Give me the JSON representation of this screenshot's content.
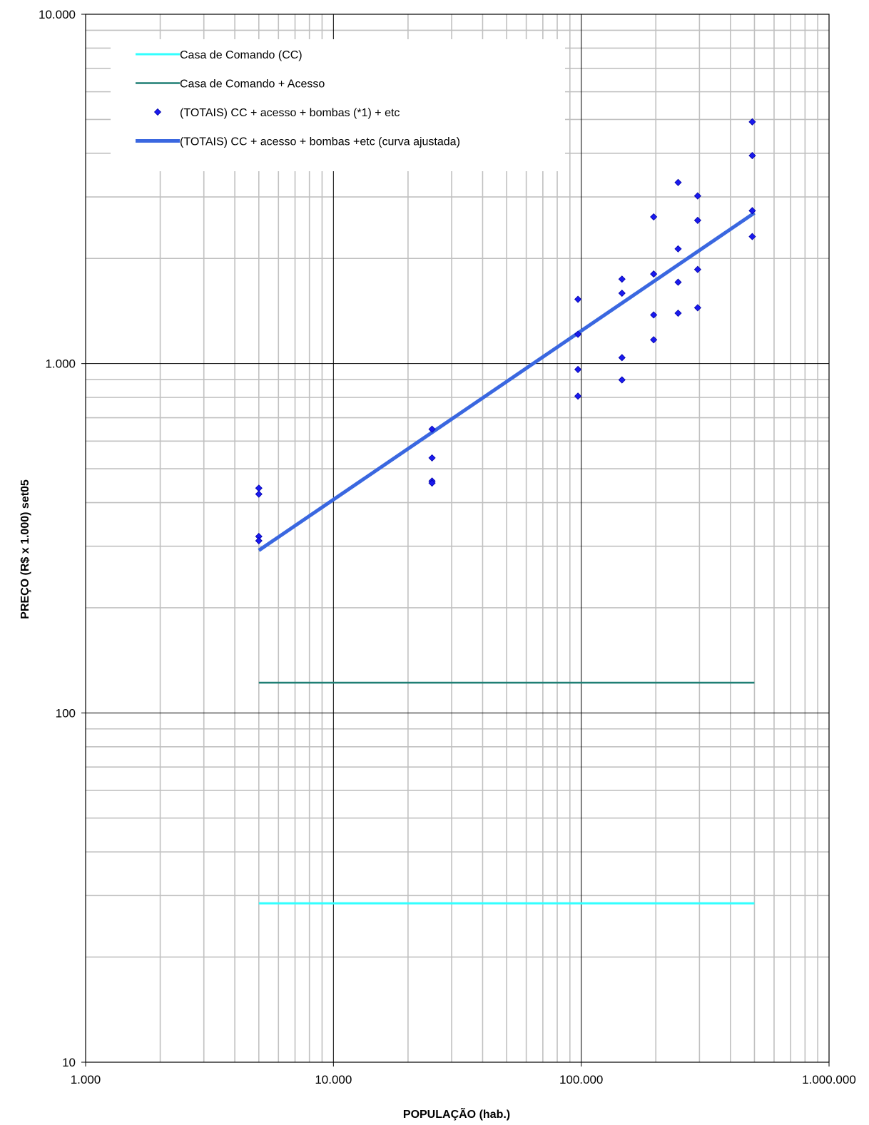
{
  "chart_data": {
    "type": "scatter",
    "xscale": "log",
    "yscale": "log",
    "xlim": [
      1000,
      1000000
    ],
    "ylim": [
      10,
      10000
    ],
    "grid": true,
    "xlabel": "POPULAÇÃO (hab.)",
    "ylabel": "PREÇO (R$ x 1.000) set05",
    "xticks": [
      {
        "value": 1000,
        "label": "1.000"
      },
      {
        "value": 10000,
        "label": "10.000"
      },
      {
        "value": 100000,
        "label": "100.000"
      },
      {
        "value": 1000000,
        "label": "1.000.000"
      }
    ],
    "yticks": [
      {
        "value": 10,
        "label": "10"
      },
      {
        "value": 100,
        "label": "100"
      },
      {
        "value": 1000,
        "label": "1.000"
      },
      {
        "value": 10000,
        "label": "10.000"
      }
    ],
    "legend_position": "top-left",
    "series": [
      {
        "name": "Casa de  Comando (CC)",
        "kind": "line",
        "color": "#33ffff",
        "width": 3,
        "points": [
          [
            5000,
            28.5
          ],
          [
            500000,
            28.5
          ]
        ]
      },
      {
        "name": "Casa de Comando + Acesso",
        "kind": "line",
        "color": "#1f7f74",
        "width": 2.5,
        "points": [
          [
            5000,
            122
          ],
          [
            500000,
            122
          ]
        ]
      },
      {
        "name": "(TOTAIS) CC + acesso + bombas (*1) + etc",
        "kind": "scatter",
        "color": "#1a1aee",
        "points": [
          [
            5000,
            440
          ],
          [
            5000,
            423
          ],
          [
            5000,
            320
          ],
          [
            5000,
            311
          ],
          [
            25000,
            649
          ],
          [
            25000,
            537
          ],
          [
            25000,
            461
          ],
          [
            25000,
            455
          ],
          [
            97000,
            1528
          ],
          [
            97000,
            1213
          ],
          [
            97000,
            962
          ],
          [
            97000,
            807
          ],
          [
            146000,
            1745
          ],
          [
            146000,
            1590
          ],
          [
            146000,
            1040
          ],
          [
            146000,
            898
          ],
          [
            196000,
            2630
          ],
          [
            196000,
            1805
          ],
          [
            196000,
            1378
          ],
          [
            196000,
            1170
          ],
          [
            246000,
            3300
          ],
          [
            246000,
            2130
          ],
          [
            246000,
            1710
          ],
          [
            246000,
            1394
          ],
          [
            295000,
            3020
          ],
          [
            295000,
            2570
          ],
          [
            295000,
            1860
          ],
          [
            295000,
            1445
          ],
          [
            490000,
            4920
          ],
          [
            490000,
            3940
          ],
          [
            490000,
            2740
          ],
          [
            490000,
            2310
          ]
        ]
      },
      {
        "name": "(TOTAIS) CC + acesso + bombas +etc (curva ajustada)",
        "kind": "line",
        "color": "#3a67e0",
        "width": 5,
        "points": [
          [
            5000,
            292
          ],
          [
            500000,
            2700
          ]
        ]
      }
    ]
  }
}
